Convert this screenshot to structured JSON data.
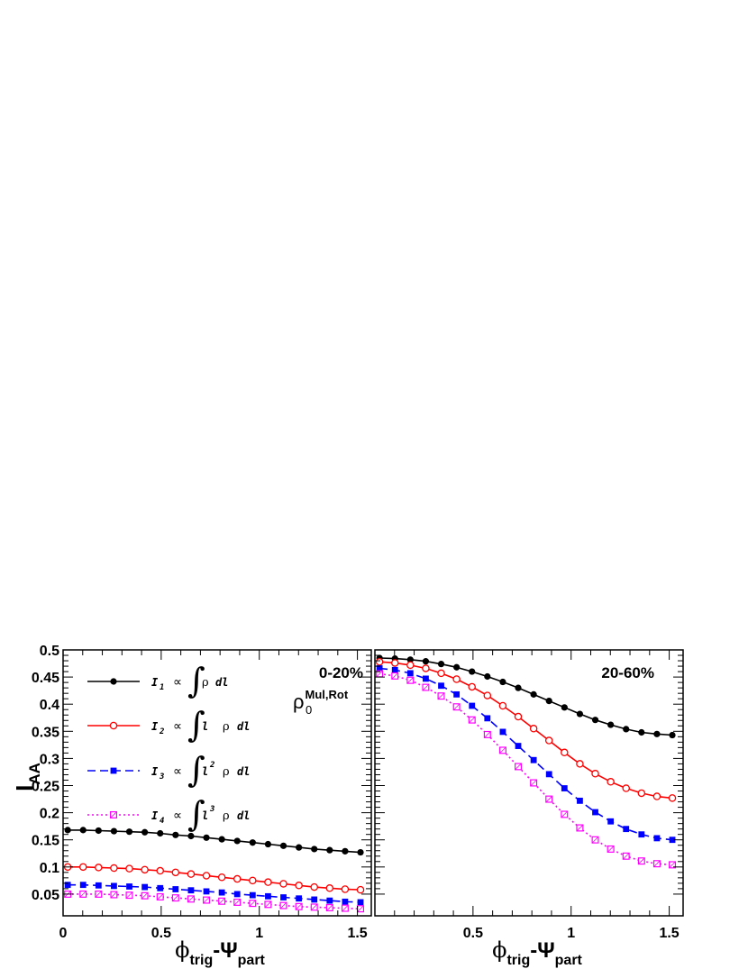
{
  "chart_data": [
    {
      "type": "line",
      "panel": "left",
      "centrality_label": "0-20%",
      "model_label": {
        "base": "ρ",
        "sub": "0",
        "sup": "Mul,Rot"
      },
      "ylabel": {
        "base": "I",
        "sub": "AA"
      },
      "xlabel": {
        "phi": "ϕ",
        "phi_sub": "trig",
        "minus": "-Ψ",
        "psi_sub": "part"
      },
      "xlim": [
        0,
        1.5708
      ],
      "ylim": [
        0.01,
        0.5
      ],
      "x_ticks": [
        0,
        0.5,
        1,
        1.5
      ],
      "x_tick_labels": [
        "0",
        "0.5",
        "1",
        "1.5"
      ],
      "y_ticks": [
        0.05,
        0.1,
        0.15,
        0.2,
        0.25,
        0.3,
        0.35,
        0.4,
        0.45,
        0.5
      ],
      "y_tick_labels": [
        "0.05",
        "0.1",
        "0.15",
        "0.2",
        "0.25",
        "0.3",
        "0.35",
        "0.4",
        "0.45",
        "0.5"
      ],
      "grid": false,
      "legend_position": "top-left",
      "series": [
        {
          "name": "I1",
          "legend": {
            "I": "I",
            "sub": "1",
            "prop": "∝",
            "integral": "∫",
            "power": "",
            "rho": "ρ",
            "dl": "dl",
            "l": ""
          },
          "color": "#000000",
          "line": "solid",
          "marker": "filled-circle",
          "x": [
            0.0236,
            0.1021,
            0.1806,
            0.2592,
            0.3377,
            0.4163,
            0.4948,
            0.5733,
            0.6519,
            0.7304,
            0.809,
            0.8875,
            0.966,
            1.0446,
            1.1231,
            1.2017,
            1.2802,
            1.3587,
            1.4373,
            1.5158
          ],
          "y": [
            0.168,
            0.168,
            0.167,
            0.166,
            0.165,
            0.164,
            0.162,
            0.159,
            0.157,
            0.154,
            0.151,
            0.148,
            0.145,
            0.142,
            0.139,
            0.136,
            0.133,
            0.131,
            0.129,
            0.127
          ]
        },
        {
          "name": "I2",
          "legend": {
            "I": "I",
            "sub": "2",
            "prop": "∝",
            "integral": "∫",
            "power": "",
            "rho": "ρ",
            "dl": "dl",
            "l": "l"
          },
          "color": "#ff0000",
          "line": "solid",
          "marker": "open-circle",
          "x": [
            0.0236,
            0.1021,
            0.1806,
            0.2592,
            0.3377,
            0.4163,
            0.4948,
            0.5733,
            0.6519,
            0.7304,
            0.809,
            0.8875,
            0.966,
            1.0446,
            1.1231,
            1.2017,
            1.2802,
            1.3587,
            1.4373,
            1.5158
          ],
          "y": [
            0.1,
            0.1,
            0.099,
            0.098,
            0.097,
            0.095,
            0.093,
            0.09,
            0.087,
            0.084,
            0.081,
            0.078,
            0.075,
            0.072,
            0.069,
            0.066,
            0.063,
            0.061,
            0.059,
            0.058
          ]
        },
        {
          "name": "I3",
          "legend": {
            "I": "I",
            "sub": "3",
            "prop": "∝",
            "integral": "∫",
            "power": "2",
            "rho": "ρ",
            "dl": "dl",
            "l": "l"
          },
          "color": "#0000ff",
          "line": "dashed",
          "marker": "filled-square",
          "x": [
            0.0236,
            0.1021,
            0.1806,
            0.2592,
            0.3377,
            0.4163,
            0.4948,
            0.5733,
            0.6519,
            0.7304,
            0.809,
            0.8875,
            0.966,
            1.0446,
            1.1231,
            1.2017,
            1.2802,
            1.3587,
            1.4373,
            1.5158
          ],
          "y": [
            0.067,
            0.067,
            0.066,
            0.065,
            0.064,
            0.063,
            0.061,
            0.059,
            0.057,
            0.055,
            0.053,
            0.05,
            0.048,
            0.046,
            0.044,
            0.042,
            0.04,
            0.038,
            0.036,
            0.035
          ]
        },
        {
          "name": "I4",
          "legend": {
            "I": "I",
            "sub": "4",
            "prop": "∝",
            "integral": "∫",
            "power": "3",
            "rho": "ρ",
            "dl": "dl",
            "l": "l"
          },
          "color": "#ff00ff",
          "line": "dotted",
          "marker": "open-square",
          "x": [
            0.0236,
            0.1021,
            0.1806,
            0.2592,
            0.3377,
            0.4163,
            0.4948,
            0.5733,
            0.6519,
            0.7304,
            0.809,
            0.8875,
            0.966,
            1.0446,
            1.1231,
            1.2017,
            1.2802,
            1.3587,
            1.4373,
            1.5158
          ],
          "y": [
            0.05,
            0.05,
            0.05,
            0.049,
            0.048,
            0.047,
            0.045,
            0.043,
            0.041,
            0.039,
            0.037,
            0.035,
            0.033,
            0.031,
            0.029,
            0.027,
            0.026,
            0.025,
            0.024,
            0.023
          ]
        }
      ]
    },
    {
      "type": "line",
      "panel": "right",
      "centrality_label": "20-60%",
      "xlabel": {
        "phi": "ϕ",
        "phi_sub": "trig",
        "minus": "-Ψ",
        "psi_sub": "part"
      },
      "xlim": [
        0,
        1.5708
      ],
      "ylim": [
        0.01,
        0.5
      ],
      "x_ticks": [
        0.5,
        1,
        1.5
      ],
      "x_tick_labels": [
        "0.5",
        "1",
        "1.5"
      ],
      "grid": false,
      "series": [
        {
          "name": "I1",
          "color": "#000000",
          "line": "solid",
          "marker": "filled-circle",
          "x": [
            0.0236,
            0.1021,
            0.1806,
            0.2592,
            0.3377,
            0.4163,
            0.4948,
            0.5733,
            0.6519,
            0.7304,
            0.809,
            0.8875,
            0.966,
            1.0446,
            1.1231,
            1.2017,
            1.2802,
            1.3587,
            1.4373,
            1.5158
          ],
          "y": [
            0.485,
            0.484,
            0.482,
            0.479,
            0.474,
            0.468,
            0.46,
            0.451,
            0.441,
            0.43,
            0.418,
            0.406,
            0.394,
            0.382,
            0.371,
            0.362,
            0.354,
            0.348,
            0.345,
            0.343
          ]
        },
        {
          "name": "I2",
          "color": "#ff0000",
          "line": "solid",
          "marker": "open-circle",
          "x": [
            0.0236,
            0.1021,
            0.1806,
            0.2592,
            0.3377,
            0.4163,
            0.4948,
            0.5733,
            0.6519,
            0.7304,
            0.809,
            0.8875,
            0.966,
            1.0446,
            1.1231,
            1.2017,
            1.2802,
            1.3587,
            1.4373,
            1.5158
          ],
          "y": [
            0.478,
            0.476,
            0.472,
            0.466,
            0.457,
            0.446,
            0.432,
            0.416,
            0.397,
            0.377,
            0.355,
            0.333,
            0.311,
            0.29,
            0.272,
            0.257,
            0.245,
            0.236,
            0.23,
            0.227
          ]
        },
        {
          "name": "I3",
          "color": "#0000ff",
          "line": "dashed",
          "marker": "filled-square",
          "x": [
            0.0236,
            0.1021,
            0.1806,
            0.2592,
            0.3377,
            0.4163,
            0.4948,
            0.5733,
            0.6519,
            0.7304,
            0.809,
            0.8875,
            0.966,
            1.0446,
            1.1231,
            1.2017,
            1.2802,
            1.3587,
            1.4373,
            1.5158
          ],
          "y": [
            0.466,
            0.463,
            0.457,
            0.447,
            0.434,
            0.418,
            0.397,
            0.374,
            0.349,
            0.323,
            0.297,
            0.271,
            0.245,
            0.222,
            0.201,
            0.184,
            0.17,
            0.16,
            0.153,
            0.15
          ]
        },
        {
          "name": "I4",
          "color": "#ff00ff",
          "line": "dotted",
          "marker": "open-square",
          "x": [
            0.0236,
            0.1021,
            0.1806,
            0.2592,
            0.3377,
            0.4163,
            0.4948,
            0.5733,
            0.6519,
            0.7304,
            0.809,
            0.8875,
            0.966,
            1.0446,
            1.1231,
            1.2017,
            1.2802,
            1.3587,
            1.4373,
            1.5158
          ],
          "y": [
            0.456,
            0.452,
            0.444,
            0.431,
            0.415,
            0.395,
            0.371,
            0.344,
            0.315,
            0.285,
            0.255,
            0.225,
            0.197,
            0.172,
            0.15,
            0.133,
            0.12,
            0.111,
            0.106,
            0.104
          ]
        }
      ]
    }
  ]
}
